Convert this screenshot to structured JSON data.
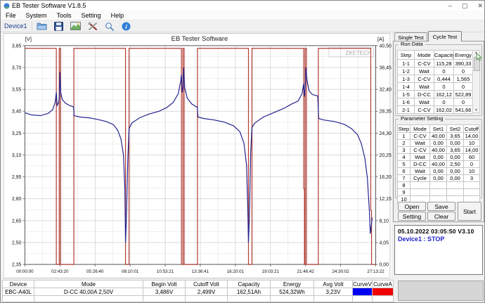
{
  "window": {
    "title": "EB Tester Software V1.8.5",
    "controls": {
      "minimize": "–",
      "maximize": "▢",
      "close": "✕"
    }
  },
  "menu": {
    "items": [
      "File",
      "System",
      "Tools",
      "Setting",
      "Help"
    ]
  },
  "toolbar": {
    "device_label": "Device1",
    "icons": [
      "open-file-icon",
      "save-icon",
      "graph-export-icon",
      "tools-icon",
      "zoom-icon",
      "info-icon"
    ]
  },
  "tabs": {
    "items": [
      "Single Test",
      "Cycle Test"
    ],
    "active": "Cycle Test"
  },
  "run_data": {
    "group_title": "Run Data",
    "columns": [
      "Step",
      "Mode",
      "Capacity",
      "Energy"
    ],
    "rows": [
      [
        "1-1",
        "C-CV",
        "115,28",
        "390,33"
      ],
      [
        "1-2",
        "Wait",
        "0",
        "0"
      ],
      [
        "1-3",
        "C-CV",
        "0,444",
        "1,565"
      ],
      [
        "1-4",
        "Wait",
        "0",
        "0"
      ],
      [
        "1-5",
        "D-CC",
        "162,12",
        "522,89"
      ],
      [
        "1-6",
        "Wait",
        "0",
        "0"
      ],
      [
        "2-1",
        "C-CV",
        "162,02",
        "541,66"
      ]
    ]
  },
  "parameter_setting": {
    "group_title": "Parameter Setting",
    "columns": [
      "Step",
      "Mode",
      "Set1",
      "Set2",
      "Cutoff"
    ],
    "rows": [
      [
        "1",
        "C-CV",
        "40,00",
        "3,65",
        "14,00"
      ],
      [
        "2",
        "Wait",
        "0,00",
        "0,00",
        "10"
      ],
      [
        "3",
        "C-CV",
        "40,00",
        "3,65",
        "14,00"
      ],
      [
        "4",
        "Wait",
        "0,00",
        "0,00",
        "60"
      ],
      [
        "5",
        "D-CC",
        "40,00",
        "2,50",
        "0"
      ],
      [
        "6",
        "Wait",
        "0,00",
        "0,00",
        "10"
      ],
      [
        "7",
        "Cycle",
        "0,00",
        "0,00",
        "3"
      ],
      [
        "8",
        "",
        "",
        "",
        ""
      ],
      [
        "9",
        "",
        "",
        "",
        ""
      ],
      [
        "10",
        "",
        "",
        "",
        ""
      ]
    ]
  },
  "panel_buttons": {
    "open": "Open",
    "save": "Save",
    "setting": "Setting",
    "clear": "Clear",
    "start": "Start"
  },
  "status": {
    "line1": "05.10.2022 03:05:50  V3.10",
    "line2": "Device1 : STOP"
  },
  "summary_table": {
    "columns": [
      "Device",
      "Mode",
      "Begin Volt",
      "Cutoff Volt",
      "Capacity",
      "Energy",
      "Avg Volt",
      "CurveV",
      "CurveA"
    ],
    "cells": [
      "EBC-A40L",
      "D-CC 40,00A 2,50V",
      "3,486V",
      "2,499V",
      "162,51Ah",
      "524,32Wh",
      "3,23V"
    ],
    "curve_v_color": "#0000f0",
    "curve_a_color": "#f00000"
  },
  "chart_data": {
    "type": "line",
    "title": "EB Tester Software",
    "watermark": "ZKETECH",
    "grid": {
      "solid": "#cdcdcd",
      "dotted": "#b8b8b8"
    },
    "left_axis": {
      "unit": "[V]",
      "min": 2.35,
      "max": 3.85,
      "ticks": [
        "3,85",
        "3,70",
        "3,55",
        "3,40",
        "3,25",
        "3,10",
        "2,95",
        "2,80",
        "2,65",
        "2,50",
        "2,35"
      ]
    },
    "right_axis": {
      "unit": "[A]",
      "min": 0,
      "max": 40.5,
      "ticks": [
        "40,50",
        "36,45",
        "32,40",
        "28,35",
        "24,30",
        "20,25",
        "16,20",
        "12,15",
        "8,10",
        "4,05",
        "0,00"
      ]
    },
    "x_axis": {
      "max_hours": 27.2233,
      "ticks": [
        "00:00:00",
        "02:43:20",
        "05:26:40",
        "08:10:01",
        "10:53:21",
        "13:36:41",
        "16:20:01",
        "19:03:21",
        "21:46:42",
        "24:30:02",
        "27:13:22"
      ]
    },
    "series": [
      {
        "name": "CurveV",
        "axis": "left",
        "color": "#23238f",
        "points": [
          [
            0,
            3.39
          ],
          [
            0.5,
            3.375
          ],
          [
            1.2,
            3.37
          ],
          [
            1.8,
            3.385
          ],
          [
            2.15,
            3.41
          ],
          [
            2.35,
            3.46
          ],
          [
            2.44,
            3.53
          ],
          [
            2.5,
            3.44
          ],
          [
            2.62,
            3.46
          ],
          [
            2.68,
            3.5
          ],
          [
            2.72,
            3.67
          ],
          [
            2.78,
            3.53
          ],
          [
            2.9,
            3.48
          ],
          [
            3.15,
            3.455
          ],
          [
            3.45,
            3.44
          ],
          [
            3.78,
            3.43
          ],
          [
            3.82,
            3.37
          ],
          [
            4.3,
            3.36
          ],
          [
            5.0,
            3.355
          ],
          [
            5.6,
            3.345
          ],
          [
            6.3,
            3.33
          ],
          [
            6.85,
            3.31
          ],
          [
            7.2,
            3.27
          ],
          [
            7.45,
            3.21
          ],
          [
            7.65,
            3.1
          ],
          [
            7.76,
            2.86
          ],
          [
            7.81,
            2.5
          ],
          [
            7.87,
            2.64
          ],
          [
            7.98,
            3.06
          ],
          [
            8.08,
            3.28
          ],
          [
            8.3,
            3.32
          ],
          [
            8.9,
            3.355
          ],
          [
            9.6,
            3.38
          ],
          [
            10.4,
            3.4
          ],
          [
            11.0,
            3.425
          ],
          [
            11.5,
            3.46
          ],
          [
            11.9,
            3.52
          ],
          [
            12.1,
            3.61
          ],
          [
            12.15,
            3.65
          ],
          [
            12.2,
            3.53
          ],
          [
            12.28,
            3.56
          ],
          [
            12.32,
            3.7
          ],
          [
            12.4,
            3.56
          ],
          [
            12.6,
            3.49
          ],
          [
            12.95,
            3.45
          ],
          [
            13.3,
            3.43
          ],
          [
            13.38,
            3.43
          ],
          [
            13.43,
            3.36
          ],
          [
            13.9,
            3.35
          ],
          [
            14.7,
            3.34
          ],
          [
            15.5,
            3.325
          ],
          [
            16.2,
            3.3
          ],
          [
            16.68,
            3.26
          ],
          [
            17.0,
            3.18
          ],
          [
            17.2,
            3.03
          ],
          [
            17.3,
            2.72
          ],
          [
            17.35,
            2.5
          ],
          [
            17.42,
            2.67
          ],
          [
            17.52,
            3.12
          ],
          [
            17.62,
            3.29
          ],
          [
            17.85,
            3.32
          ],
          [
            18.5,
            3.36
          ],
          [
            19.3,
            3.39
          ],
          [
            20.1,
            3.42
          ],
          [
            20.7,
            3.45
          ],
          [
            21.2,
            3.47
          ],
          [
            21.5,
            3.52
          ],
          [
            21.64,
            3.59
          ],
          [
            21.68,
            3.5
          ],
          [
            21.75,
            3.56
          ],
          [
            21.8,
            3.7
          ],
          [
            21.9,
            3.61
          ],
          [
            22.05,
            3.54
          ],
          [
            22.3,
            3.515
          ],
          [
            22.72,
            3.505
          ],
          [
            22.8,
            3.35
          ],
          [
            23.2,
            3.34
          ],
          [
            24.0,
            3.33
          ],
          [
            24.8,
            3.31
          ],
          [
            25.35,
            3.28
          ],
          [
            25.8,
            3.24
          ],
          [
            26.1,
            3.18
          ],
          [
            26.38,
            3.08
          ],
          [
            26.58,
            2.94
          ],
          [
            26.74,
            2.7
          ],
          [
            26.8,
            2.56
          ],
          [
            26.88,
            2.62
          ],
          [
            26.95,
            2.67
          ]
        ]
      },
      {
        "name": "CurveA",
        "axis": "right",
        "color": "#b23b32",
        "segments": [
          [
            0,
            2.44,
            40
          ],
          [
            2.44,
            2.66,
            0
          ],
          [
            2.66,
            2.77,
            40
          ],
          [
            2.77,
            3.8,
            0
          ],
          [
            3.8,
            7.81,
            40
          ],
          [
            7.81,
            8.08,
            0
          ],
          [
            8.08,
            12.15,
            40
          ],
          [
            12.15,
            12.26,
            0
          ],
          [
            12.26,
            12.36,
            40
          ],
          [
            12.36,
            13.39,
            0
          ],
          [
            13.39,
            17.35,
            40
          ],
          [
            17.35,
            17.62,
            0
          ],
          [
            17.62,
            21.64,
            40
          ],
          [
            21.64,
            21.69,
            14
          ],
          [
            21.69,
            21.74,
            0
          ],
          [
            21.74,
            21.85,
            40
          ],
          [
            21.85,
            22.77,
            0
          ],
          [
            22.77,
            26.84,
            40
          ],
          [
            26.84,
            26.9,
            10
          ],
          [
            26.9,
            27.22,
            0
          ]
        ]
      }
    ]
  }
}
